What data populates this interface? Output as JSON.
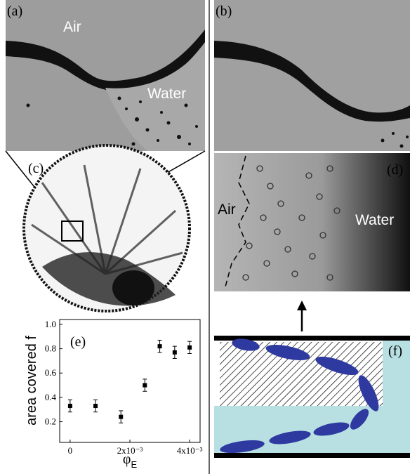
{
  "panels": {
    "a": {
      "label": "(a)",
      "air": "Air",
      "water": "Water"
    },
    "b": {
      "label": "(b)"
    },
    "c": {
      "label": "(c)"
    },
    "d": {
      "label": "(d)",
      "air": "Air",
      "water": "Water"
    },
    "f": {
      "label": "(f)"
    }
  },
  "chart_data": {
    "type": "scatter",
    "label": "(e)",
    "xlabel": {
      "symbol": "φ",
      "subscript": "E"
    },
    "ylabel": "area covered f",
    "x": [
      0,
      0.00085,
      0.0017,
      0.0025,
      0.003,
      0.0035,
      0.004
    ],
    "values": [
      0.33,
      0.33,
      0.24,
      0.5,
      0.82,
      0.77,
      0.81
    ],
    "errors": [
      0.05,
      0.05,
      0.05,
      0.05,
      0.05,
      0.05,
      0.05
    ],
    "color": "#000000",
    "xlim": [
      -0.00035,
      0.00435
    ],
    "ylim": [
      0.03,
      1.04
    ],
    "xticks": [
      0,
      {
        "value": 0.002,
        "label": "2x10⁻³"
      },
      {
        "value": 0.004,
        "label": "4x10⁻³"
      }
    ],
    "yticks": [
      0.2,
      0.4,
      0.6,
      0.8,
      {
        "value": 1.0,
        "label": "1.0"
      }
    ]
  }
}
